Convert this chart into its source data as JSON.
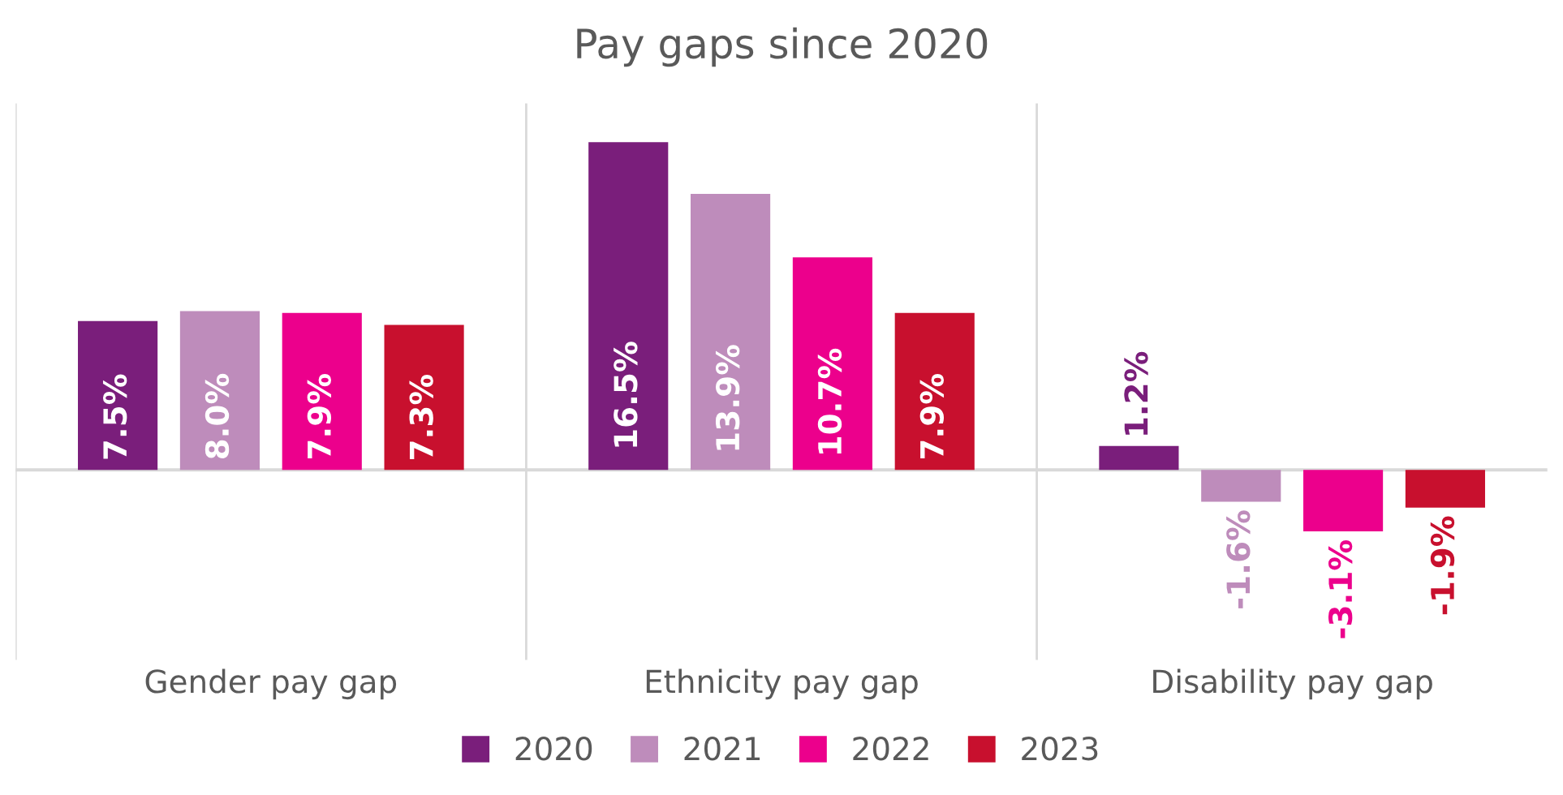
{
  "chart_data": {
    "type": "bar",
    "title": "Pay gaps since 2020",
    "categories": [
      "Gender pay gap",
      "Ethnicity pay gap",
      "Disability pay gap"
    ],
    "series": [
      {
        "name": "2020",
        "color": "#7a1e7b",
        "values": [
          7.5,
          16.5,
          1.2
        ],
        "value_labels": [
          "7.5%",
          "16.5%",
          "1.2%"
        ]
      },
      {
        "name": "2021",
        "color": "#be8cbb",
        "values": [
          8.0,
          13.9,
          -1.6
        ],
        "value_labels": [
          "8.0%",
          "13.9%",
          "-1.6%"
        ]
      },
      {
        "name": "2022",
        "color": "#ec008c",
        "values": [
          7.9,
          10.7,
          -3.1
        ],
        "value_labels": [
          "7.9%",
          "10.7%",
          "-3.1%"
        ]
      },
      {
        "name": "2023",
        "color": "#c8102e",
        "values": [
          7.3,
          7.9,
          -1.9
        ],
        "value_labels": [
          "7.3%",
          "7.9%",
          "-1.9%"
        ]
      }
    ],
    "legend": "bottom",
    "grid": false
  }
}
